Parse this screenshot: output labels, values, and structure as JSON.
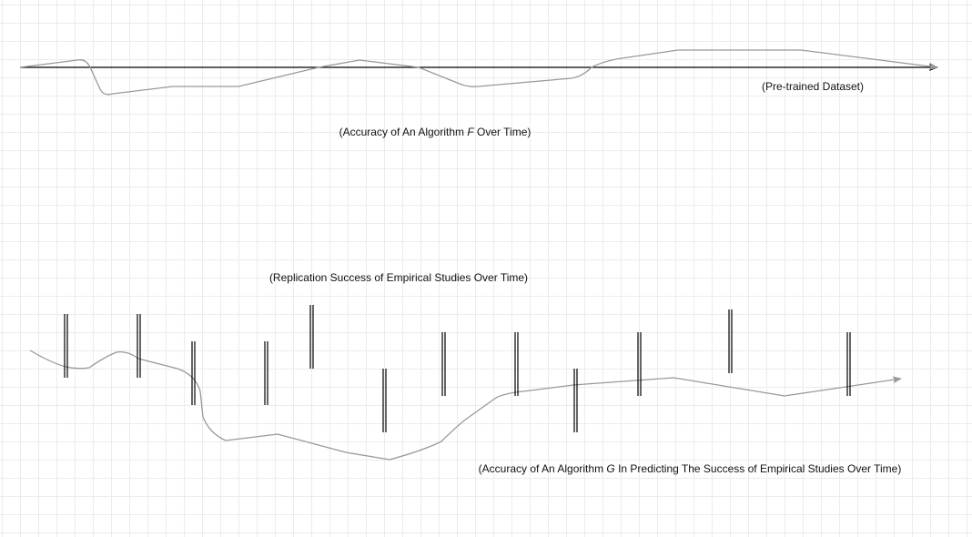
{
  "labels": [
    {
      "parts": [
        "(Pre-trained Dataset)"
      ]
    },
    {
      "parts": [
        "(Accuracy of An Algorithm ",
        "F",
        " Over Time)"
      ]
    },
    {
      "parts": [
        "(Replication Success of Empirical Studies Over Time)"
      ]
    },
    {
      "parts": [
        "(Accuracy of An Algorithm ",
        "G",
        " In Predicting The Success of Empirical Studies Over Time)"
      ]
    }
  ]
}
